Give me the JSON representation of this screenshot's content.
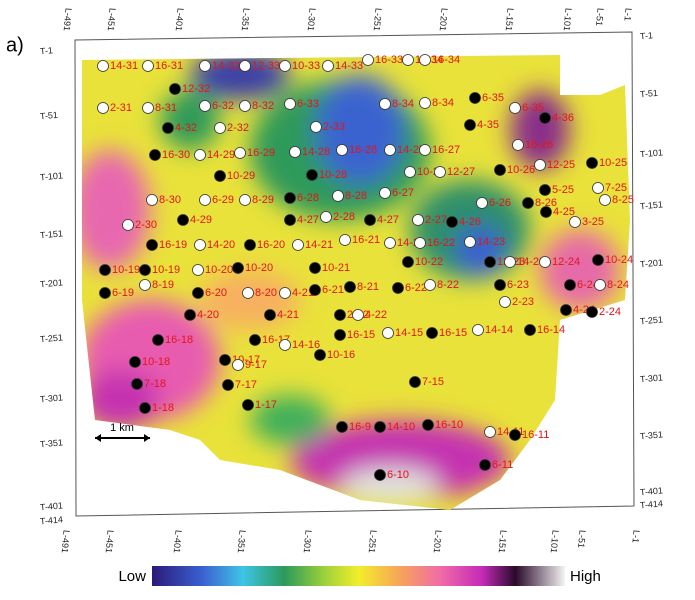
{
  "panel_label": "a)",
  "top_axis": [
    "L-491",
    "L-451",
    "L-401",
    "L-351",
    "L-301",
    "L-251",
    "L-201",
    "L-151",
    "L-101",
    "L-51",
    "L-1"
  ],
  "bottom_axis": [
    "L-491",
    "L-451",
    "L-401",
    "L-351",
    "L-301",
    "L-251",
    "L-201",
    "L-151",
    "L-101",
    "L-51",
    "L-1"
  ],
  "left_axis": [
    "T-1",
    "T-51",
    "T-101",
    "T-151",
    "T-201",
    "T-251",
    "T-301",
    "T-351",
    "T-401",
    "T-414"
  ],
  "right_axis": [
    "T-1",
    "T-51",
    "T-101",
    "T-151",
    "T-201",
    "T-251",
    "T-301",
    "T-351",
    "T-401",
    "T-414"
  ],
  "wells": [
    "14-31",
    "16-31",
    "14-32",
    "12-33",
    "10-33",
    "14-33",
    "16-33",
    "14-34",
    "16-34",
    "12-32",
    "2-31",
    "8-31",
    "6-32",
    "8-32",
    "6-33",
    "8-34",
    "8-34",
    "6-35",
    "4-35",
    "6-35",
    "4-36",
    "4-32",
    "2-32",
    "2-33",
    "16-30",
    "14-29",
    "16-29",
    "14-28",
    "16-28",
    "14-27",
    "16-27",
    "16-26",
    "10-29",
    "10-28",
    "10-27",
    "12-27",
    "10-26",
    "12-25",
    "10-25",
    "5-25",
    "7-25",
    "8-30",
    "6-29",
    "8-29",
    "6-28",
    "8-28",
    "6-27",
    "6-26",
    "8-26",
    "8-25",
    "4-29",
    "4-27",
    "2-28",
    "4-27",
    "2-27",
    "4-26",
    "4-25",
    "3-25",
    "2-30",
    "16-19",
    "14-20",
    "16-20",
    "14-21",
    "16-21",
    "14-22",
    "16-22",
    "14-23",
    "10-19",
    "10-19",
    "10-20",
    "10-20",
    "10-21",
    "10-22",
    "12-23",
    "14-23",
    "12-24",
    "10-24",
    "6-19",
    "8-19",
    "6-20",
    "8-20",
    "4-21",
    "6-21",
    "8-21",
    "6-22",
    "8-22",
    "6-23",
    "6-24",
    "8-24",
    "2-23",
    "4-24",
    "2-24",
    "4-20",
    "4-21",
    "2-22",
    "4-22",
    "16-18",
    "16-17",
    "14-16",
    "16-15",
    "14-15",
    "16-15",
    "14-14",
    "16-14",
    "10-18",
    "10-17",
    "9-17",
    "10-16",
    "7-18",
    "7-17",
    "7-15",
    "1-18",
    "1-17",
    "16-9",
    "14-10",
    "16-10",
    "14-11",
    "16-11",
    "6-11",
    "6-10"
  ],
  "scale_bar": "1 km",
  "colorbar": {
    "low": "Low",
    "high": "High"
  }
}
